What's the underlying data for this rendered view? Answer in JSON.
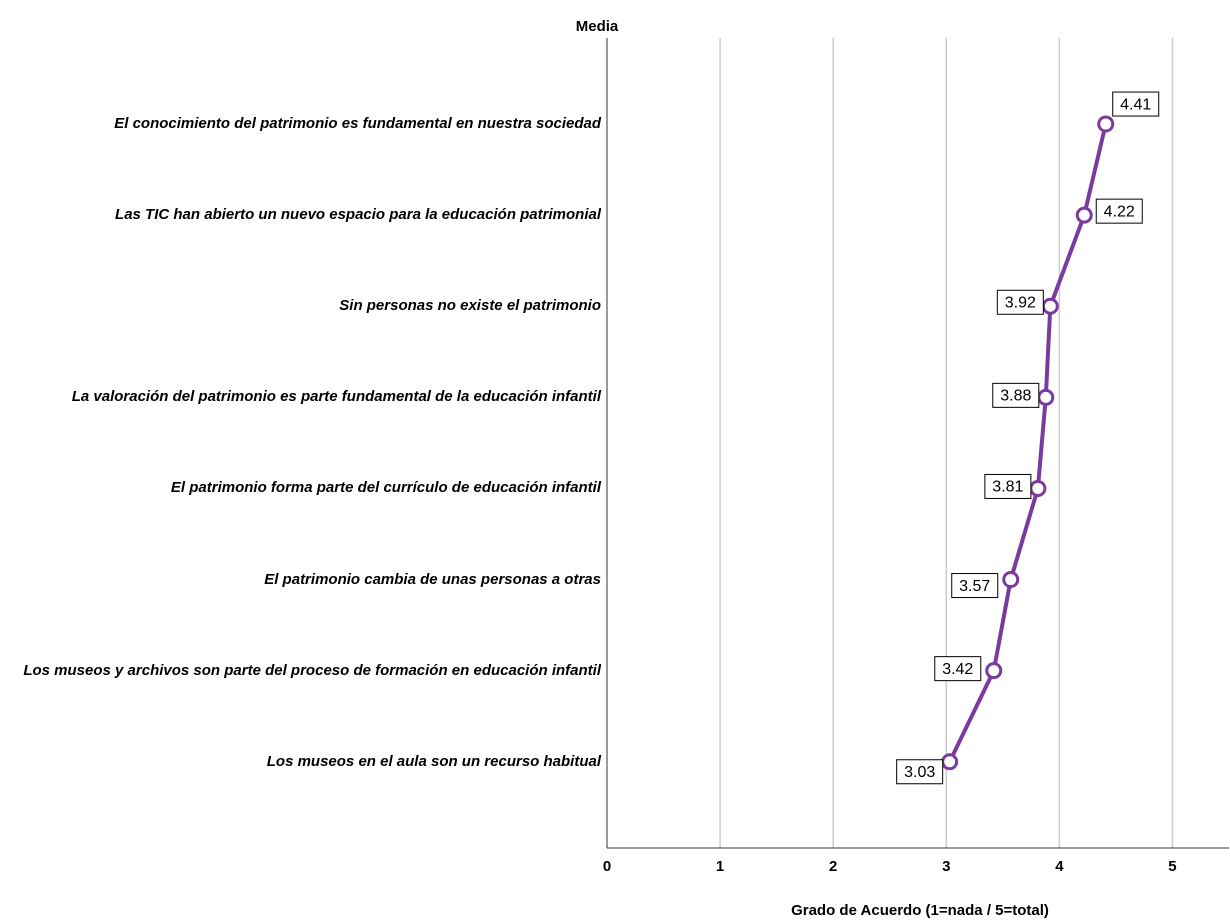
{
  "chart_data": {
    "type": "line",
    "title": "Media",
    "x_label": "Grado de Acuerdo (1=nada / 5=total)",
    "categories": [
      "El conocimiento del patrimonio es fundamental en nuestra sociedad",
      "Las TIC han abierto un nuevo espacio para la educación patrimonial",
      "Sin personas no existe el patrimonio",
      "La valoración del patrimonio es parte fundamental de la educación infantil",
      "El patrimonio forma parte del currículo de educación infantil",
      "El patrimonio cambia de unas personas a otras",
      "Los museos y archivos son parte del proceso de formación en educación infantil",
      "Los museos en el aula son un recurso habitual"
    ],
    "series": [
      {
        "name": "Media",
        "color": "#7b3a9e",
        "values": [
          4.41,
          4.22,
          3.92,
          3.88,
          3.81,
          3.57,
          3.42,
          3.03
        ]
      }
    ],
    "xlim": [
      0,
      5.5
    ],
    "xticks": [
      0,
      1,
      2,
      3,
      4,
      5
    ],
    "grid": true
  }
}
